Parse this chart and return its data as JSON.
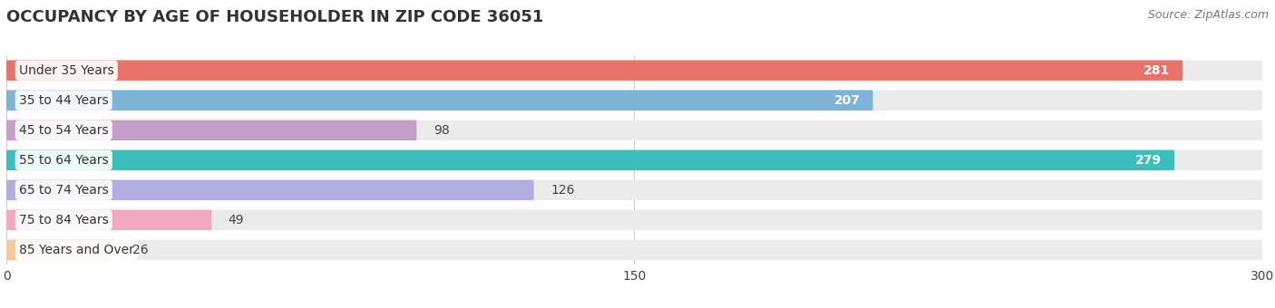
{
  "title": "OCCUPANCY BY AGE OF HOUSEHOLDER IN ZIP CODE 36051",
  "source": "Source: ZipAtlas.com",
  "categories": [
    "Under 35 Years",
    "35 to 44 Years",
    "45 to 54 Years",
    "55 to 64 Years",
    "65 to 74 Years",
    "75 to 84 Years",
    "85 Years and Over"
  ],
  "values": [
    281,
    207,
    98,
    279,
    126,
    49,
    26
  ],
  "bar_colors": [
    "#E8736A",
    "#7EB3D8",
    "#C4A0C8",
    "#3BBFBE",
    "#B0ADE0",
    "#F4A8C0",
    "#F5C99A"
  ],
  "bar_bg_color": "#EBEBEB",
  "xlim": [
    0,
    300
  ],
  "xticks": [
    0,
    150,
    300
  ],
  "title_fontsize": 13,
  "source_fontsize": 9,
  "label_fontsize": 10,
  "value_fontsize": 10,
  "bar_height": 0.68,
  "background_color": "#FFFFFF",
  "grid_color": "#CCCCCC",
  "value_threshold": 150
}
